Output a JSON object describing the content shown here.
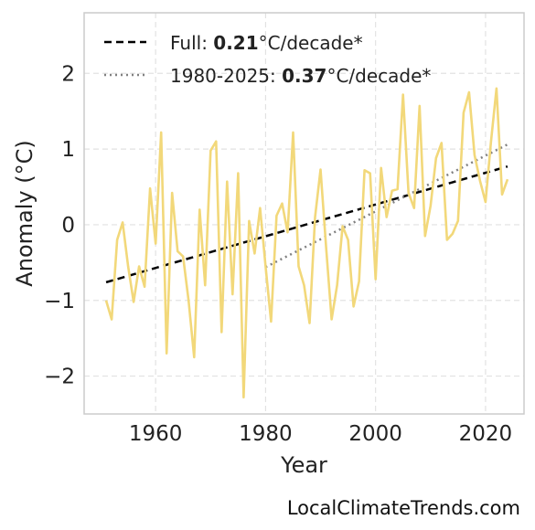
{
  "footer": {
    "source": "LocalClimateTrends.com"
  },
  "colors": {
    "series": "#f2d87a",
    "fit_full": "#000000",
    "fit_recent": "#808080",
    "grid": "#e2e2e2",
    "frame": "#cccccc"
  },
  "chart_data": {
    "type": "line",
    "xlabel": "Year",
    "ylabel": "Anomaly (°C)",
    "xlim": [
      1947,
      2027
    ],
    "ylim": [
      -2.5,
      2.8
    ],
    "xticks": [
      1960,
      1980,
      2000,
      2020
    ],
    "yticks": [
      -2,
      -1,
      0,
      1,
      2
    ],
    "ytick_labels": [
      "−2",
      "−1",
      "0",
      "1",
      "2"
    ],
    "grid": true,
    "legend_position": "top-left",
    "legend": [
      {
        "style": "dashed",
        "prefix": "Full: ",
        "value": "0.21",
        "suffix": "°C/decade*"
      },
      {
        "style": "dotted",
        "prefix": "1980-2025: ",
        "value": "0.37",
        "suffix": "°C/decade*"
      }
    ],
    "series": [
      {
        "x": [
          1951,
          1952,
          1953,
          1954,
          1955,
          1956,
          1957,
          1958,
          1959,
          1960,
          1961,
          1962,
          1963,
          1964,
          1965,
          1966,
          1967,
          1968,
          1969,
          1970,
          1971,
          1972,
          1973,
          1974,
          1975,
          1976,
          1977,
          1978,
          1979,
          1980,
          1981,
          1982,
          1983,
          1984,
          1985,
          1986,
          1987,
          1988,
          1989,
          1990,
          1991,
          1992,
          1993,
          1994,
          1995,
          1996,
          1997,
          1998,
          1999,
          2000,
          2001,
          2002,
          2003,
          2004,
          2005,
          2006,
          2007,
          2008,
          2009,
          2010,
          2011,
          2012,
          2013,
          2014,
          2015,
          2016,
          2017,
          2018,
          2019,
          2020,
          2021,
          2022,
          2023,
          2024
        ],
        "y": [
          -1.0,
          -1.25,
          -0.2,
          0.03,
          -0.55,
          -1.02,
          -0.55,
          -0.82,
          0.48,
          -0.25,
          1.22,
          -1.7,
          0.42,
          -0.35,
          -0.42,
          -1.0,
          -1.75,
          0.2,
          -0.8,
          0.98,
          1.1,
          -1.42,
          0.57,
          -0.92,
          0.68,
          -2.28,
          0.05,
          -0.38,
          0.22,
          -0.55,
          -1.28,
          0.12,
          0.28,
          -0.1,
          1.22,
          -0.55,
          -0.8,
          -1.3,
          0.1,
          0.73,
          -0.3,
          -1.25,
          -0.8,
          -0.02,
          -0.2,
          -1.08,
          -0.75,
          0.72,
          0.68,
          -0.72,
          0.75,
          0.1,
          0.45,
          0.47,
          1.72,
          0.42,
          0.22,
          1.57,
          -0.15,
          0.25,
          0.88,
          1.08,
          -0.2,
          -0.12,
          0.05,
          1.48,
          1.75,
          0.92,
          0.58,
          0.3,
          1.1,
          1.8,
          0.4,
          0.6
        ]
      }
    ],
    "trend_full": {
      "x": [
        1951,
        2024
      ],
      "y": [
        -0.76,
        0.77
      ]
    },
    "trend_recent": {
      "x": [
        1980,
        2024
      ],
      "y": [
        -0.56,
        1.06
      ]
    }
  }
}
